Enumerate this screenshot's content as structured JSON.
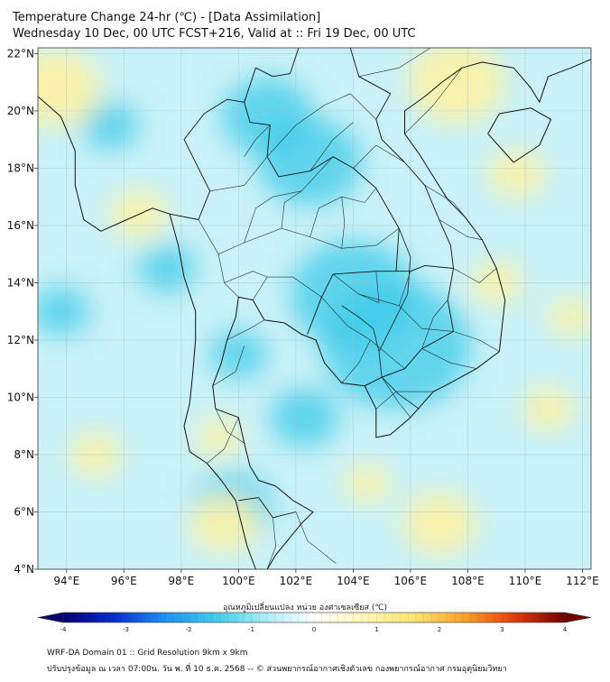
{
  "title_line1": "Temperature Change 24-hr (℃) - [Data Assimilation]",
  "title_line2": "Wednesday 10 Dec, 00 UTC FCST+216, Valid at :: Fri 19 Dec, 00 UTC",
  "map": {
    "lon_range": [
      93,
      112.3
    ],
    "lat_range": [
      4,
      22.2
    ],
    "lon_ticks": [
      94,
      96,
      98,
      100,
      102,
      104,
      106,
      108,
      110,
      112
    ],
    "lon_tick_labels": [
      "94°E",
      "96°E",
      "98°E",
      "100°E",
      "102°E",
      "104°E",
      "106°E",
      "108°E",
      "110°E",
      "112°E"
    ],
    "lat_ticks": [
      22,
      20,
      18,
      16,
      14,
      12,
      10,
      8,
      6,
      4
    ],
    "lat_tick_labels": [
      "22°N",
      "20°N",
      "18°N",
      "16°N",
      "14°N",
      "12°N",
      "10°N",
      "8°N",
      "6°N",
      "4°N"
    ],
    "grid": true,
    "background_color": "#c9f1f7",
    "warm_color": "#fbf2aa",
    "cool_color": "#3dcbe8",
    "anomalies": [
      {
        "kind": "cool",
        "lon": 105.5,
        "lat": 11.8,
        "r_deg": 2.6
      },
      {
        "kind": "cool",
        "lon": 104.0,
        "lat": 13.6,
        "r_deg": 2.2
      },
      {
        "kind": "cool",
        "lon": 102.5,
        "lat": 18.2,
        "r_deg": 1.8
      },
      {
        "kind": "cool",
        "lon": 101.0,
        "lat": 19.8,
        "r_deg": 1.6
      },
      {
        "kind": "cool",
        "lon": 102.3,
        "lat": 9.3,
        "r_deg": 1.2
      },
      {
        "kind": "cool",
        "lon": 93.8,
        "lat": 13.0,
        "r_deg": 1.0
      },
      {
        "kind": "cool",
        "lon": 99.8,
        "lat": 6.2,
        "r_deg": 1.4
      },
      {
        "kind": "cool",
        "lon": 100.0,
        "lat": 11.5,
        "r_deg": 1.0
      },
      {
        "kind": "cool",
        "lon": 97.5,
        "lat": 14.5,
        "r_deg": 1.0
      },
      {
        "kind": "cool",
        "lon": 95.5,
        "lat": 19.5,
        "r_deg": 1.0
      },
      {
        "kind": "warm",
        "lon": 93.6,
        "lat": 20.8,
        "r_deg": 1.6
      },
      {
        "kind": "warm",
        "lon": 96.5,
        "lat": 16.4,
        "r_deg": 1.0
      },
      {
        "kind": "warm",
        "lon": 107.6,
        "lat": 21.0,
        "r_deg": 1.7
      },
      {
        "kind": "warm",
        "lon": 99.5,
        "lat": 5.6,
        "r_deg": 1.2
      },
      {
        "kind": "warm",
        "lon": 99.3,
        "lat": 8.6,
        "r_deg": 0.8
      },
      {
        "kind": "warm",
        "lon": 109.7,
        "lat": 17.8,
        "r_deg": 1.0
      },
      {
        "kind": "warm",
        "lon": 109.0,
        "lat": 14.0,
        "r_deg": 0.9
      },
      {
        "kind": "warm",
        "lon": 107.0,
        "lat": 5.6,
        "r_deg": 1.3
      },
      {
        "kind": "warm",
        "lon": 110.8,
        "lat": 9.6,
        "r_deg": 0.9
      },
      {
        "kind": "warm",
        "lon": 95.0,
        "lat": 8.0,
        "r_deg": 0.9
      },
      {
        "kind": "warm",
        "lon": 111.6,
        "lat": 12.8,
        "r_deg": 0.8
      },
      {
        "kind": "warm",
        "lon": 104.5,
        "lat": 7.0,
        "r_deg": 0.8
      }
    ],
    "coastlines": [
      [
        [
          93.0,
          20.5
        ],
        [
          93.8,
          19.8
        ],
        [
          94.3,
          18.6
        ],
        [
          94.3,
          17.4
        ],
        [
          94.6,
          16.2
        ],
        [
          95.2,
          15.8
        ],
        [
          96.1,
          16.2
        ],
        [
          97.0,
          16.6
        ],
        [
          97.6,
          16.4
        ],
        [
          97.9,
          15.3
        ],
        [
          98.1,
          14.2
        ],
        [
          98.5,
          13.0
        ],
        [
          98.5,
          12.0
        ],
        [
          98.4,
          10.8
        ],
        [
          98.3,
          9.8
        ],
        [
          98.1,
          9.0
        ],
        [
          98.3,
          8.1
        ],
        [
          98.9,
          7.7
        ],
        [
          99.4,
          7.1
        ],
        [
          99.9,
          6.4
        ],
        [
          100.1,
          5.6
        ],
        [
          100.3,
          4.8
        ],
        [
          100.6,
          4.0
        ]
      ],
      [
        [
          101.0,
          4.0
        ],
        [
          101.3,
          4.5
        ],
        [
          102.2,
          5.6
        ],
        [
          102.6,
          6.0
        ],
        [
          101.9,
          6.4
        ],
        [
          101.3,
          6.9
        ],
        [
          100.7,
          7.1
        ],
        [
          100.4,
          7.6
        ],
        [
          100.2,
          8.4
        ],
        [
          100.0,
          9.3
        ],
        [
          99.2,
          9.6
        ],
        [
          99.1,
          10.4
        ],
        [
          99.4,
          11.2
        ],
        [
          99.6,
          12.0
        ],
        [
          99.9,
          12.8
        ],
        [
          100.0,
          13.5
        ],
        [
          100.5,
          13.4
        ],
        [
          100.9,
          12.7
        ],
        [
          101.6,
          12.6
        ],
        [
          102.2,
          12.2
        ],
        [
          102.7,
          12.0
        ],
        [
          103.0,
          11.2
        ],
        [
          103.6,
          10.5
        ],
        [
          104.4,
          10.4
        ],
        [
          104.8,
          9.6
        ],
        [
          104.8,
          8.6
        ],
        [
          105.3,
          8.7
        ],
        [
          106.0,
          9.3
        ],
        [
          106.8,
          10.2
        ],
        [
          107.2,
          10.4
        ],
        [
          108.3,
          11.0
        ],
        [
          109.1,
          11.6
        ],
        [
          109.2,
          12.5
        ],
        [
          109.3,
          13.4
        ],
        [
          109.0,
          14.5
        ],
        [
          108.5,
          15.5
        ],
        [
          107.9,
          16.3
        ],
        [
          107.3,
          16.9
        ],
        [
          106.8,
          17.7
        ],
        [
          106.3,
          18.5
        ],
        [
          105.8,
          19.2
        ],
        [
          105.8,
          20.0
        ],
        [
          106.5,
          20.5
        ],
        [
          107.1,
          21.0
        ],
        [
          107.8,
          21.5
        ],
        [
          108.5,
          21.7
        ],
        [
          109.6,
          21.5
        ],
        [
          110.2,
          20.8
        ],
        [
          110.5,
          20.3
        ],
        [
          110.8,
          21.2
        ],
        [
          111.6,
          21.5
        ],
        [
          112.3,
          21.8
        ]
      ],
      [
        [
          108.7,
          19.2
        ],
        [
          109.6,
          18.2
        ],
        [
          110.5,
          18.8
        ],
        [
          110.9,
          19.7
        ],
        [
          110.2,
          20.1
        ],
        [
          109.1,
          19.9
        ],
        [
          108.7,
          19.2
        ]
      ]
    ],
    "borders": [
      [
        [
          97.6,
          16.4
        ],
        [
          98.6,
          16.2
        ],
        [
          99.0,
          17.2
        ],
        [
          98.1,
          19.0
        ],
        [
          98.8,
          19.9
        ],
        [
          99.6,
          20.4
        ],
        [
          100.2,
          20.3
        ],
        [
          100.6,
          21.5
        ],
        [
          101.2,
          21.2
        ],
        [
          101.8,
          21.3
        ],
        [
          102.1,
          22.2
        ]
      ],
      [
        [
          100.2,
          20.3
        ],
        [
          100.4,
          19.6
        ],
        [
          101.1,
          19.5
        ],
        [
          101.0,
          18.4
        ],
        [
          101.4,
          17.7
        ],
        [
          102.5,
          17.9
        ],
        [
          103.3,
          18.4
        ],
        [
          104.0,
          18.0
        ],
        [
          104.8,
          17.3
        ],
        [
          105.6,
          15.9
        ],
        [
          105.5,
          14.4
        ],
        [
          106.0,
          14.4
        ],
        [
          106.5,
          14.6
        ],
        [
          107.5,
          14.5
        ],
        [
          107.3,
          13.4
        ],
        [
          107.5,
          12.3
        ],
        [
          106.4,
          11.7
        ],
        [
          105.8,
          11.0
        ],
        [
          105.0,
          10.7
        ],
        [
          104.4,
          10.4
        ]
      ],
      [
        [
          102.4,
          12.2
        ],
        [
          102.9,
          13.5
        ],
        [
          103.3,
          14.3
        ],
        [
          104.8,
          14.4
        ],
        [
          105.5,
          14.4
        ]
      ],
      [
        [
          103.9,
          22.2
        ],
        [
          104.2,
          21.2
        ],
        [
          105.3,
          20.6
        ],
        [
          104.8,
          19.7
        ],
        [
          105.0,
          19.0
        ],
        [
          105.8,
          18.2
        ],
        [
          106.5,
          17.4
        ],
        [
          107.0,
          16.2
        ],
        [
          107.4,
          15.3
        ],
        [
          107.5,
          14.5
        ]
      ],
      [
        [
          100.0,
          6.4
        ],
        [
          100.7,
          6.5
        ],
        [
          101.2,
          5.8
        ],
        [
          102.0,
          6.0
        ]
      ]
    ],
    "provinces": [
      [
        [
          99.0,
          17.2
        ],
        [
          100.2,
          17.4
        ],
        [
          101.0,
          18.4
        ]
      ],
      [
        [
          98.6,
          16.2
        ],
        [
          99.3,
          15.0
        ],
        [
          100.2,
          15.4
        ],
        [
          101.5,
          15.9
        ],
        [
          102.5,
          15.6
        ],
        [
          103.6,
          15.2
        ],
        [
          104.8,
          15.3
        ],
        [
          105.6,
          15.9
        ]
      ],
      [
        [
          99.3,
          15.0
        ],
        [
          99.5,
          14.0
        ],
        [
          100.0,
          13.5
        ]
      ],
      [
        [
          100.5,
          13.4
        ],
        [
          101.0,
          14.2
        ],
        [
          101.9,
          14.2
        ],
        [
          102.9,
          13.5
        ]
      ],
      [
        [
          100.2,
          15.4
        ],
        [
          100.6,
          16.6
        ],
        [
          101.2,
          17.0
        ],
        [
          102.2,
          17.2
        ],
        [
          103.3,
          18.4
        ]
      ],
      [
        [
          101.5,
          15.9
        ],
        [
          101.6,
          16.8
        ],
        [
          102.2,
          17.2
        ]
      ],
      [
        [
          102.5,
          15.6
        ],
        [
          102.8,
          16.6
        ],
        [
          103.6,
          17.0
        ],
        [
          104.4,
          16.8
        ],
        [
          104.8,
          17.3
        ]
      ],
      [
        [
          103.6,
          15.2
        ],
        [
          103.7,
          16.1
        ],
        [
          103.6,
          17.0
        ]
      ],
      [
        [
          99.5,
          14.0
        ],
        [
          100.5,
          14.4
        ],
        [
          101.0,
          14.2
        ]
      ],
      [
        [
          99.6,
          12.0
        ],
        [
          100.4,
          12.4
        ],
        [
          100.9,
          12.7
        ]
      ],
      [
        [
          99.1,
          10.4
        ],
        [
          99.9,
          10.9
        ],
        [
          100.2,
          11.8
        ]
      ],
      [
        [
          99.2,
          9.6
        ],
        [
          99.6,
          8.8
        ],
        [
          100.2,
          8.4
        ]
      ],
      [
        [
          98.9,
          7.7
        ],
        [
          99.5,
          8.2
        ],
        [
          100.0,
          9.3
        ]
      ],
      [
        [
          100.2,
          18.4
        ],
        [
          100.6,
          19.0
        ],
        [
          101.1,
          19.5
        ]
      ],
      [
        [
          101.0,
          18.4
        ],
        [
          102.0,
          19.5
        ],
        [
          103.0,
          20.2
        ],
        [
          103.9,
          20.6
        ],
        [
          104.8,
          19.7
        ]
      ],
      [
        [
          102.5,
          17.9
        ],
        [
          103.3,
          19.0
        ],
        [
          104.0,
          19.6
        ]
      ],
      [
        [
          104.0,
          18.0
        ],
        [
          104.8,
          18.8
        ],
        [
          105.8,
          18.2
        ]
      ],
      [
        [
          106.0,
          14.4
        ],
        [
          105.6,
          13.2
        ],
        [
          106.4,
          12.4
        ],
        [
          107.5,
          12.3
        ]
      ],
      [
        [
          103.3,
          14.3
        ],
        [
          104.2,
          13.6
        ],
        [
          105.6,
          13.2
        ]
      ],
      [
        [
          102.9,
          13.5
        ],
        [
          103.8,
          12.5
        ],
        [
          104.6,
          12.0
        ],
        [
          105.8,
          11.0
        ]
      ],
      [
        [
          103.6,
          10.5
        ],
        [
          104.2,
          11.2
        ],
        [
          104.6,
          12.0
        ]
      ],
      [
        [
          104.8,
          14.4
        ],
        [
          104.9,
          13.3
        ],
        [
          104.2,
          13.6
        ]
      ],
      [
        [
          106.4,
          11.7
        ],
        [
          106.8,
          12.8
        ],
        [
          107.3,
          13.4
        ]
      ],
      [
        [
          104.8,
          9.6
        ],
        [
          105.5,
          10.2
        ],
        [
          106.8,
          10.2
        ]
      ],
      [
        [
          105.0,
          10.7
        ],
        [
          105.6,
          9.8
        ],
        [
          106.0,
          9.3
        ]
      ],
      [
        [
          106.5,
          17.4
        ],
        [
          107.5,
          16.8
        ],
        [
          107.9,
          16.3
        ]
      ],
      [
        [
          105.8,
          19.2
        ],
        [
          106.8,
          20.2
        ],
        [
          107.8,
          21.5
        ]
      ],
      [
        [
          104.2,
          21.2
        ],
        [
          105.6,
          21.5
        ],
        [
          106.7,
          22.2
        ]
      ],
      [
        [
          107.0,
          16.2
        ],
        [
          108.0,
          15.6
        ],
        [
          108.5,
          15.5
        ]
      ],
      [
        [
          107.5,
          14.5
        ],
        [
          108.4,
          14.0
        ],
        [
          109.0,
          14.5
        ]
      ],
      [
        [
          107.5,
          12.3
        ],
        [
          108.4,
          12.0
        ],
        [
          109.1,
          11.6
        ]
      ],
      [
        [
          106.4,
          11.7
        ],
        [
          107.4,
          11.2
        ],
        [
          108.3,
          11.0
        ]
      ],
      [
        [
          101.2,
          5.8
        ],
        [
          101.3,
          4.8
        ],
        [
          101.0,
          4.0
        ]
      ],
      [
        [
          102.0,
          6.0
        ],
        [
          102.4,
          5.0
        ],
        [
          103.4,
          4.2
        ]
      ]
    ],
    "rivers": [
      [
        [
          105.6,
          15.9
        ],
        [
          106.0,
          14.9
        ],
        [
          105.9,
          13.6
        ],
        [
          105.3,
          12.4
        ],
        [
          104.9,
          11.6
        ],
        [
          105.0,
          10.7
        ],
        [
          105.6,
          10.1
        ],
        [
          106.3,
          9.6
        ]
      ],
      [
        [
          103.6,
          13.2
        ],
        [
          104.2,
          12.8
        ],
        [
          104.7,
          12.4
        ],
        [
          104.9,
          11.6
        ]
      ]
    ]
  },
  "colorbar": {
    "title": "อุณหภูมิเปลี่ยนแปลง หน่วย องศาเซลเซียส (℃)",
    "min": -4,
    "max": 4,
    "tick_values": [
      -4,
      -3,
      -2,
      -1,
      0,
      1,
      2,
      3,
      4
    ],
    "tick_labels": [
      "-4",
      "-3",
      "-2",
      "-1",
      "0",
      "1",
      "2",
      "3",
      "4"
    ],
    "stops": [
      {
        "v": -4.0,
        "c": "#06006e"
      },
      {
        "v": -3.2,
        "c": "#0b2bd0"
      },
      {
        "v": -2.4,
        "c": "#1e8ff4"
      },
      {
        "v": -1.6,
        "c": "#3dcbe8"
      },
      {
        "v": -0.8,
        "c": "#a8ecf5"
      },
      {
        "v": 0.0,
        "c": "#ffffff"
      },
      {
        "v": 0.8,
        "c": "#fdf6b8"
      },
      {
        "v": 1.6,
        "c": "#fbe472"
      },
      {
        "v": 2.4,
        "c": "#f7a32a"
      },
      {
        "v": 3.2,
        "c": "#e43b0e"
      },
      {
        "v": 4.0,
        "c": "#6f0000"
      }
    ]
  },
  "footer_line1": "WRF-DA Domain 01 :: Grid Resolution 9km x 9km",
  "footer_line2": "ปรับปรุงข้อมูล ณ เวลา 07:00น. วัน พ. ที่ 10 ธ.ค. 2568 -- © ส่วนพยากรณ์อากาศเชิงตัวเลข กองพยากรณ์อากาศ กรมอุตุนิยมวิทยา"
}
